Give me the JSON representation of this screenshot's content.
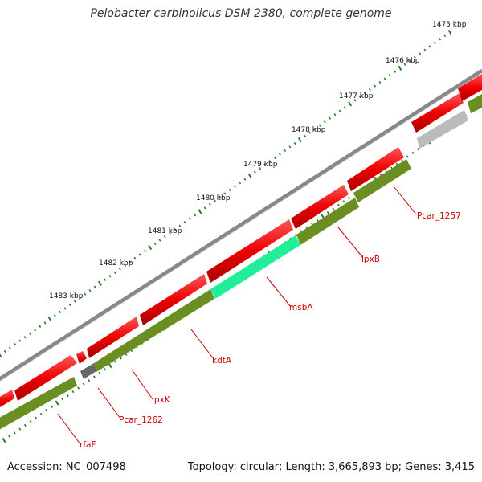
{
  "title": "Pelobacter carbinolicus DSM 2380, complete genome",
  "footer": {
    "accession": "Accession: NC_007498",
    "stats": "Topology: circular; Length: 3,665,893 bp; Genes: 3,415"
  },
  "colors": {
    "cds_red": "#ee0000",
    "cds_green": "#6b8e23",
    "highlight": "#22ee99",
    "gray": "#bbbbbb",
    "dark_gray": "#666666",
    "tick": "#2a7a2a",
    "label_red": "#cc0000"
  },
  "ticks": [
    {
      "label": "1475 kbp"
    },
    {
      "label": "1476 kbp"
    },
    {
      "label": "1477 kbp"
    },
    {
      "label": "1478 kbp"
    },
    {
      "label": "1479 kbp"
    },
    {
      "label": "1480 kbp"
    },
    {
      "label": "1481 kbp"
    },
    {
      "label": "1482 kbp"
    },
    {
      "label": "1483 kbp"
    }
  ],
  "genes": [
    {
      "label": "Pcar_1257"
    },
    {
      "label": "lpxB"
    },
    {
      "label": "msbA"
    },
    {
      "label": "kdtA"
    },
    {
      "label": "lpxK"
    },
    {
      "label": "Pcar_1262"
    },
    {
      "label": "rfaF"
    }
  ]
}
